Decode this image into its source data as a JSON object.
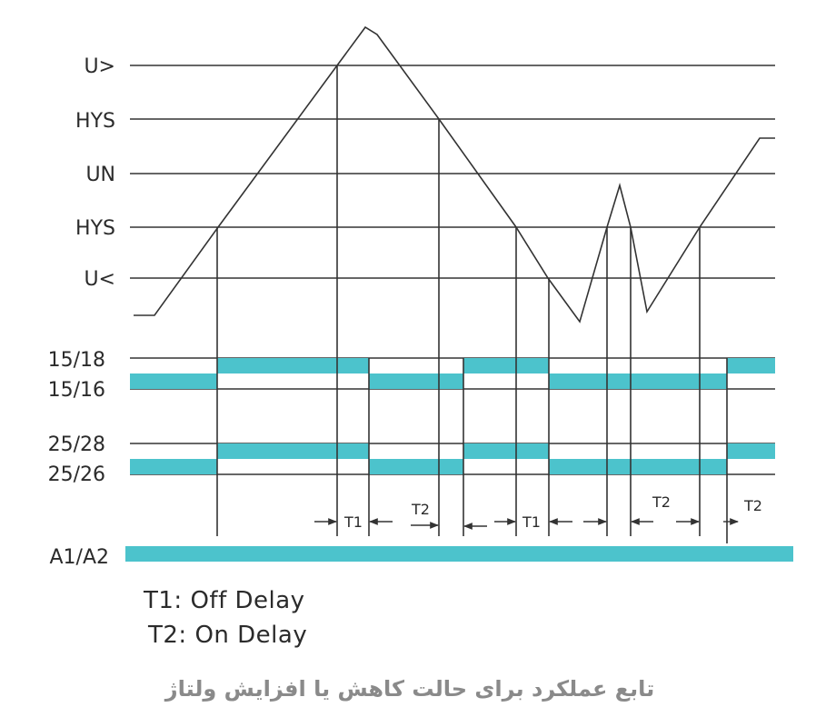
{
  "levels": {
    "u_over": "U>",
    "hys_upper": "HYS",
    "un": "UN",
    "hys_lower": "HYS",
    "u_under": "U<"
  },
  "contacts": {
    "c1_nc": "15/18",
    "c1_no": "15/16",
    "c2_nc": "25/28",
    "c2_no": "25/26",
    "supply": "A1/A2"
  },
  "delays": {
    "t1_a": "T1",
    "t2_a": "T2",
    "t1_b": "T1",
    "t2_b": "T2",
    "t2_c": "T2"
  },
  "legend": {
    "t1": "T1: Off Delay",
    "t2": "T2: On Delay"
  },
  "caption": "تابع عملکرد برای حالت کاهش یا افزایش ولتاژ",
  "colors": {
    "bar": "#4cc3cc",
    "line": "#333333"
  }
}
